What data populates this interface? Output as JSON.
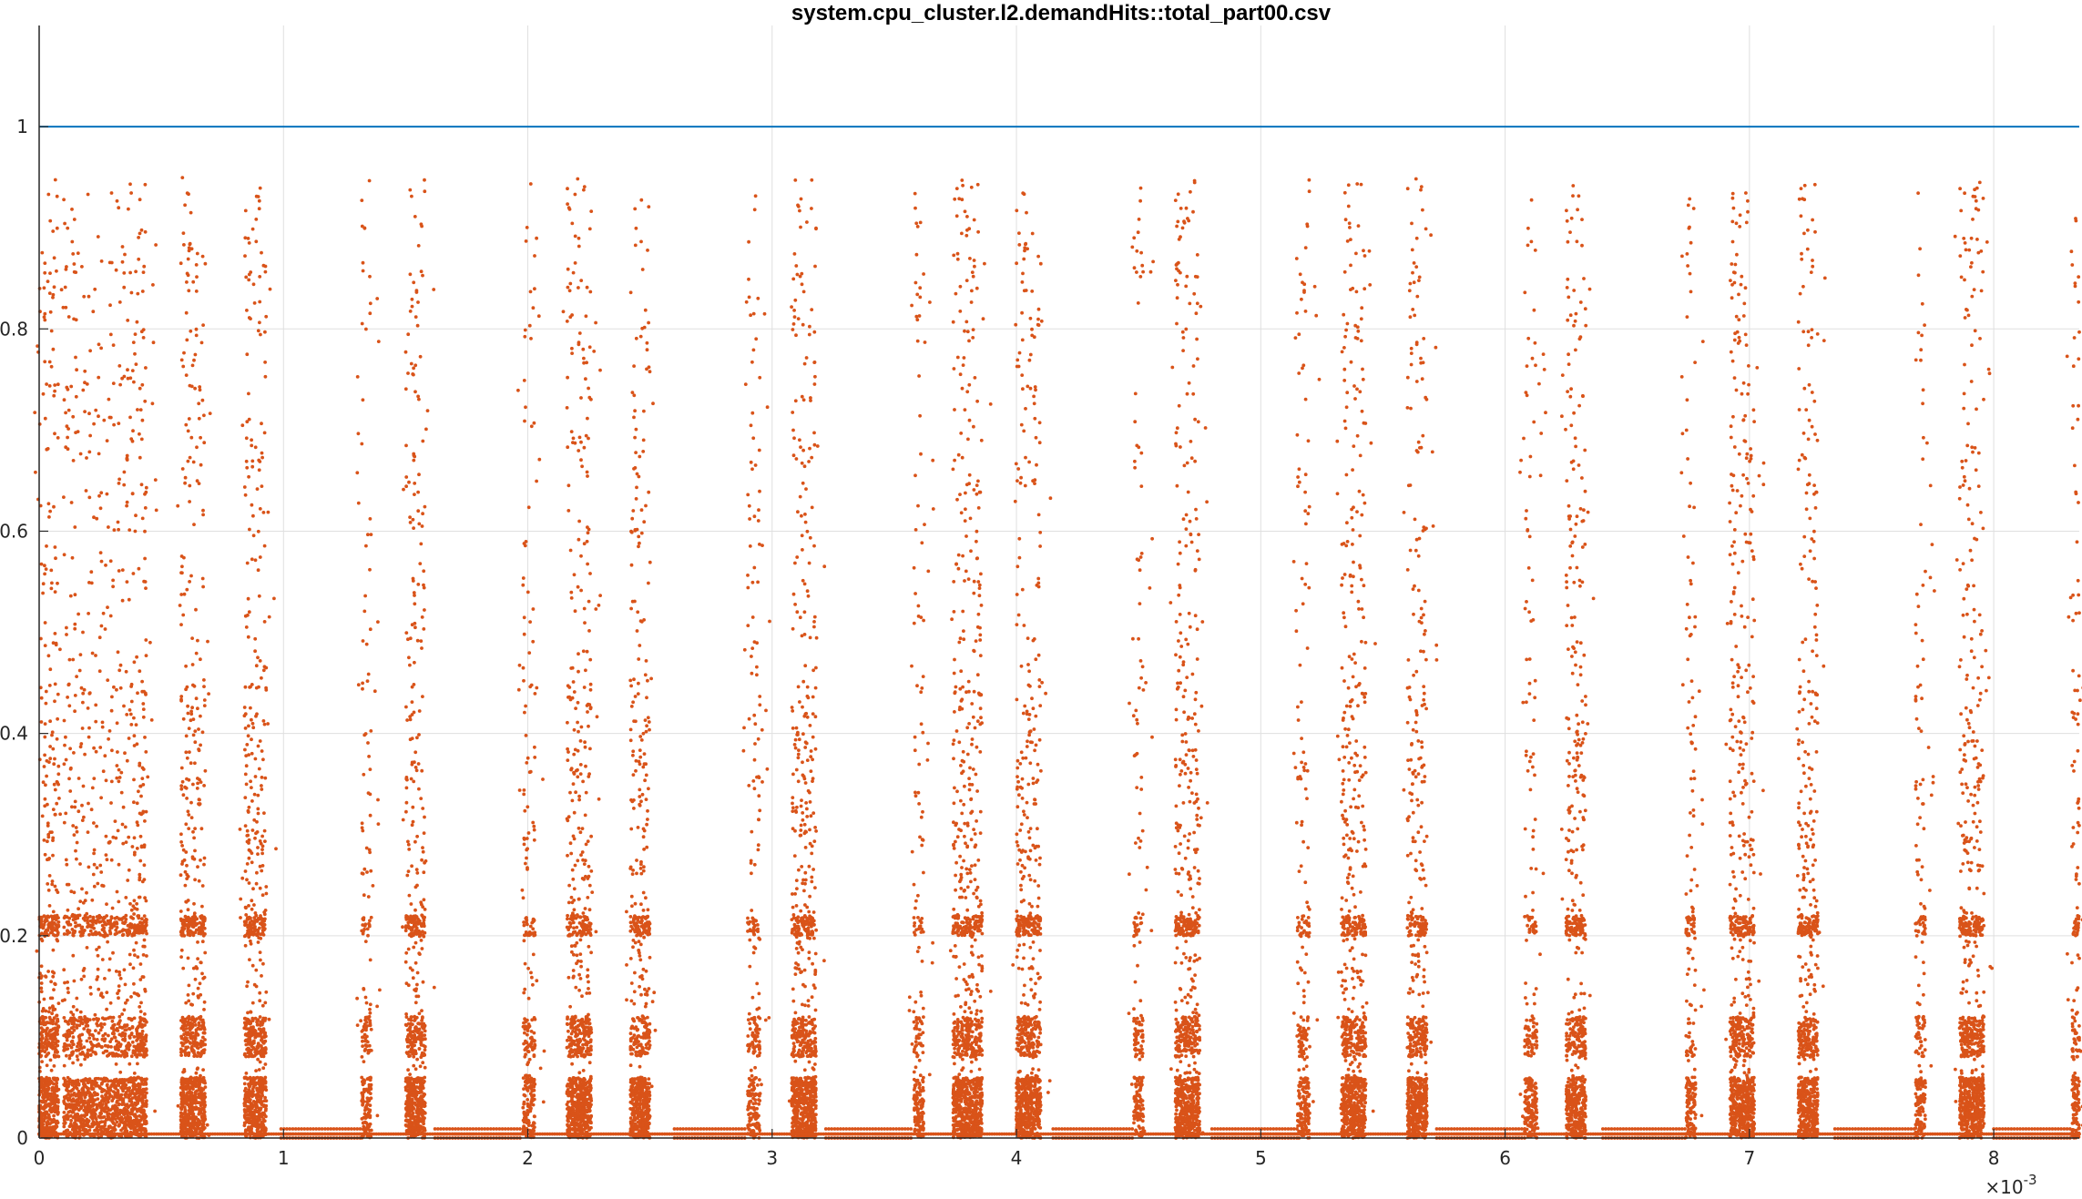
{
  "chart_data": {
    "type": "scatter",
    "title": "system.cpu_cluster.l2.demandHits::total_part00.csv",
    "xlabel": "",
    "ylabel": "",
    "xlim": [
      0,
      0.00835
    ],
    "ylim": [
      0,
      1.1
    ],
    "x_exponent_label": "×10",
    "x_exponent_power": "-3",
    "x_ticks": [
      0,
      1,
      2,
      3,
      4,
      5,
      6,
      7,
      8
    ],
    "x_tick_labels": [
      "0",
      "1",
      "2",
      "3",
      "4",
      "5",
      "6",
      "7",
      "8"
    ],
    "y_ticks": [
      0,
      0.2,
      0.4,
      0.6,
      0.8,
      1.0
    ],
    "y_tick_labels": [
      "0",
      "0.2",
      "0.4",
      "0.6",
      "0.8",
      "1"
    ],
    "grid": true,
    "reference_line": {
      "y": 1.0,
      "color": "#0072BD"
    },
    "marker_color": "#D95319",
    "series": [
      {
        "marker": "dot",
        "bursts_x_e3": [
          [
            0.0,
            0.08,
            1.0
          ],
          [
            0.1,
            0.4,
            0.6
          ],
          [
            0.4,
            0.44,
            1.0
          ],
          [
            0.58,
            0.68,
            1.0
          ],
          [
            0.84,
            0.93,
            1.0
          ],
          [
            1.32,
            1.36,
            0.6
          ],
          [
            1.5,
            1.58,
            1.0
          ],
          [
            1.98,
            2.03,
            0.6
          ],
          [
            2.16,
            2.26,
            1.0
          ],
          [
            2.42,
            2.5,
            1.0
          ],
          [
            2.9,
            2.95,
            0.6
          ],
          [
            3.08,
            3.18,
            1.0
          ],
          [
            3.58,
            3.62,
            0.6
          ],
          [
            3.74,
            3.86,
            1.0
          ],
          [
            4.0,
            4.1,
            1.0
          ],
          [
            4.48,
            4.52,
            0.6
          ],
          [
            4.65,
            4.75,
            1.0
          ],
          [
            5.15,
            5.2,
            0.6
          ],
          [
            5.33,
            5.43,
            1.0
          ],
          [
            5.6,
            5.68,
            1.0
          ],
          [
            6.08,
            6.13,
            0.6
          ],
          [
            6.25,
            6.33,
            1.0
          ],
          [
            6.74,
            6.78,
            0.6
          ],
          [
            6.92,
            7.02,
            1.0
          ],
          [
            7.2,
            7.28,
            1.0
          ],
          [
            7.68,
            7.72,
            0.6
          ],
          [
            7.86,
            7.96,
            1.0
          ],
          [
            8.32,
            8.35,
            0.6
          ]
        ],
        "bursts_note_units": "x in units of 1e-3; [start, end, relative density]",
        "baseline_values": [
          0.0,
          0.004,
          0.009
        ],
        "gaps_x_e3": [
          [
            0.99,
            1.32
          ],
          [
            1.62,
            1.98
          ],
          [
            2.6,
            2.9
          ],
          [
            3.22,
            3.58
          ],
          [
            4.15,
            4.48
          ],
          [
            4.8,
            5.15
          ],
          [
            5.72,
            6.08
          ],
          [
            6.4,
            6.74
          ],
          [
            7.35,
            7.68
          ],
          [
            8.0,
            8.32
          ]
        ],
        "band_levels": [
          0.1,
          0.21
        ]
      }
    ]
  }
}
